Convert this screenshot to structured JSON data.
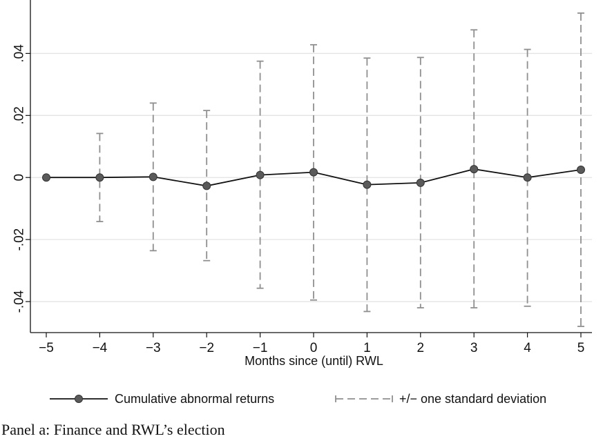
{
  "chart_data": {
    "type": "line",
    "xlabel": "Months since (until) RWL",
    "ylabel": "",
    "x": [
      -5,
      -4,
      -3,
      -2,
      -1,
      0,
      1,
      2,
      3,
      4,
      5
    ],
    "xlim": [
      -5,
      5
    ],
    "ylim": [
      -0.05,
      0.055
    ],
    "x_ticks": [
      "−5",
      "−4",
      "−3",
      "−2",
      "−1",
      "0",
      "1",
      "2",
      "3",
      "4",
      "5"
    ],
    "y_ticks": [
      {
        "value": -0.04,
        "label": "-.04"
      },
      {
        "value": -0.02,
        "label": "-.02"
      },
      {
        "value": 0,
        "label": "0"
      },
      {
        "value": 0.02,
        "label": ".02"
      },
      {
        "value": 0.04,
        "label": ".04"
      }
    ],
    "grid": "horizontal",
    "legend_position": "bottom",
    "series": [
      {
        "name": "Cumulative abnormal returns",
        "color": "#111111",
        "marker_color": "#5a5a5a",
        "values": [
          0.0,
          0.0,
          0.0002,
          -0.0027,
          0.0008,
          0.0017,
          -0.0023,
          -0.0017,
          0.0027,
          0.0,
          0.0025
        ]
      },
      {
        "name": "+/− one standard deviation",
        "color": "#8f8f8f",
        "style": "dashed-range",
        "upper": [
          null,
          0.0142,
          0.024,
          0.0216,
          0.0375,
          0.0428,
          0.0385,
          0.0387,
          0.0476,
          0.0413,
          0.053
        ],
        "lower": [
          null,
          -0.0142,
          -0.0236,
          -0.0268,
          -0.0357,
          -0.0395,
          -0.0432,
          -0.042,
          -0.042,
          -0.0415,
          -0.048
        ]
      }
    ]
  },
  "caption": "Panel a: Finance and RWL’s election"
}
